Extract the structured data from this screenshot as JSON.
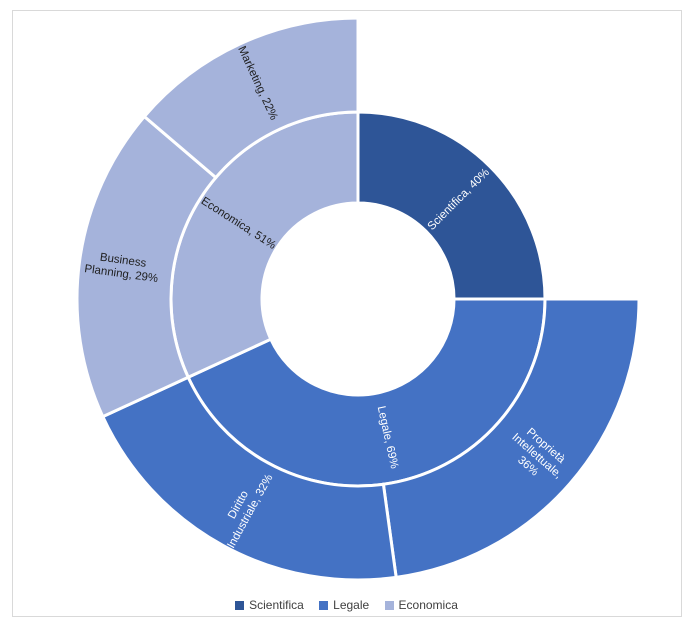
{
  "chart_data": {
    "type": "sunburst",
    "title": "",
    "categories": [
      {
        "name": "Scientifica",
        "label": "Scientifica, 40%",
        "value": 40,
        "color": "#2e5597",
        "text_color": "#ffffff",
        "children": []
      },
      {
        "name": "Legale",
        "label": "Legale, 69%",
        "value": 69,
        "color": "#4472c4",
        "text_color": "#ffffff",
        "children": [
          {
            "name": "Proprietà Intellettuale",
            "label_lines": [
              "Proprietà",
              "Intellettuale,",
              "36%"
            ],
            "value": 36,
            "color": "#4472c4",
            "text_color": "#ffffff"
          },
          {
            "name": "Diritto Industriale",
            "label_lines": [
              "Diritto",
              "Industriale, 32%"
            ],
            "value": 32,
            "color": "#4472c4",
            "text_color": "#ffffff"
          }
        ]
      },
      {
        "name": "Economica",
        "label": "Economica, 51%",
        "value": 51,
        "color": "#a5b3db",
        "text_color": "#1f1f1f",
        "children": [
          {
            "name": "Business Planning",
            "label_lines": [
              "Business",
              "Planning, 29%"
            ],
            "value": 29,
            "color": "#a5b3db",
            "text_color": "#1f1f1f"
          },
          {
            "name": "Marketing",
            "label_lines": [
              "Marketing, 22%"
            ],
            "value": 22,
            "color": "#a5b3db",
            "text_color": "#1f1f1f"
          }
        ]
      }
    ],
    "legend": {
      "position": "bottom",
      "items": [
        {
          "label": "Scientifica",
          "color": "#2e5597"
        },
        {
          "label": "Legale",
          "color": "#4472c4"
        },
        {
          "label": "Economica",
          "color": "#a5b3db"
        }
      ]
    }
  }
}
